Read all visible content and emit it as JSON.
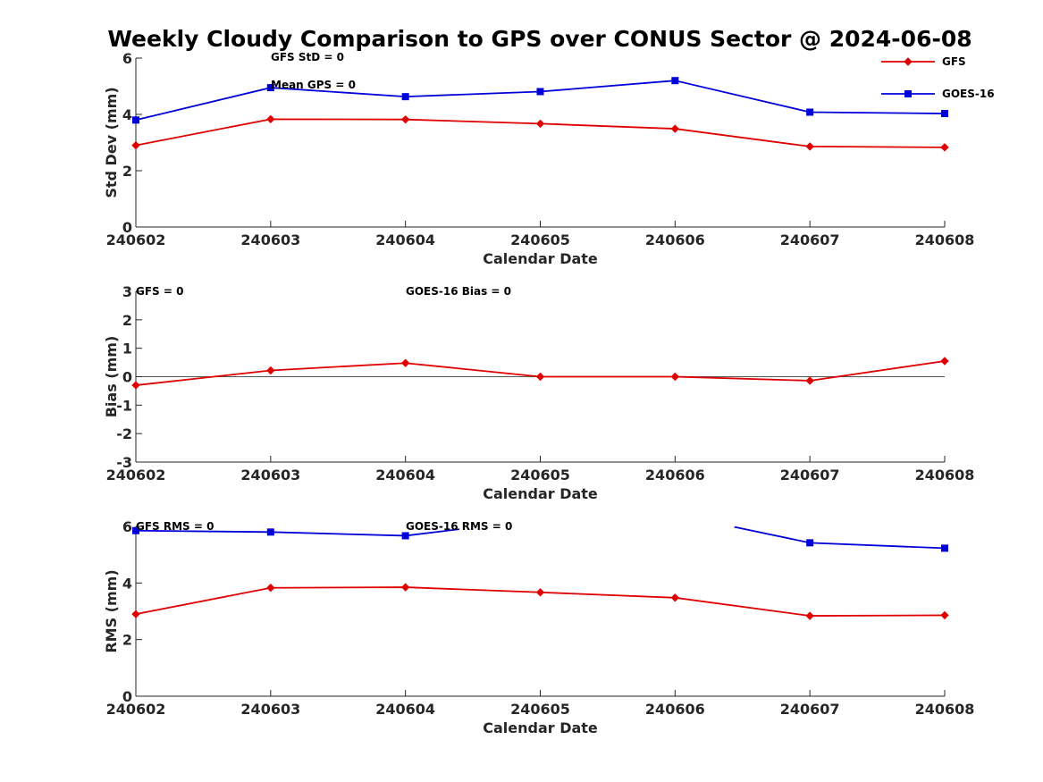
{
  "title": "Weekly Cloudy Comparison to GPS over CONUS Sector @ 2024-06-08",
  "colors": {
    "gfs": "#e00000",
    "goes": "#0000d8"
  },
  "legend": [
    {
      "name": "GFS",
      "color": "#e00000",
      "marker": "diamond"
    },
    {
      "name": "GOES-16",
      "color": "#0000d8",
      "marker": "square"
    }
  ],
  "chart_data": [
    {
      "type": "line",
      "ylabel": "Std Dev (mm)",
      "xlabel": "Calendar Date",
      "categories": [
        "240602",
        "240603",
        "240604",
        "240605",
        "240606",
        "240607",
        "240608"
      ],
      "ylim": [
        0,
        6
      ],
      "yticks": [
        0,
        2,
        4,
        6
      ],
      "annotations": [
        "GFS StD = 0",
        "Mean GPS = 0"
      ],
      "series": [
        {
          "name": "GFS",
          "color": "#e00000",
          "marker": "diamond",
          "segments": [
            [
              [
                0,
                2.9
              ],
              [
                1,
                3.83
              ],
              [
                2,
                3.82
              ],
              [
                3,
                3.67
              ],
              [
                4,
                3.49
              ],
              [
                5,
                2.86
              ],
              [
                6,
                2.83
              ]
            ]
          ]
        },
        {
          "name": "GOES-16",
          "color": "#0000d8",
          "marker": "square",
          "segments": [
            [
              [
                0,
                3.8
              ],
              [
                1,
                4.95
              ],
              [
                2,
                4.63
              ],
              [
                3,
                4.81
              ],
              [
                4,
                5.2
              ],
              [
                5,
                4.08
              ],
              [
                6,
                4.03
              ]
            ]
          ]
        }
      ]
    },
    {
      "type": "line",
      "ylabel": "Bias (mm)",
      "xlabel": "Calendar Date",
      "categories": [
        "240602",
        "240603",
        "240604",
        "240605",
        "240606",
        "240607",
        "240608"
      ],
      "ylim": [
        -3,
        3
      ],
      "yticks": [
        -3,
        -2,
        -1,
        0,
        1,
        2,
        3
      ],
      "zero_line": true,
      "annotations": [
        "GFS = 0",
        "GOES-16 Bias  = 0"
      ],
      "series": [
        {
          "name": "GFS",
          "color": "#e00000",
          "marker": "diamond",
          "segments": [
            [
              [
                0,
                -0.3
              ],
              [
                1,
                0.22
              ],
              [
                2,
                0.48
              ],
              [
                3,
                0.0
              ],
              [
                4,
                0.0
              ],
              [
                5,
                -0.14
              ],
              [
                6,
                0.55
              ]
            ]
          ]
        }
      ]
    },
    {
      "type": "line",
      "ylabel": "RMS (mm)",
      "xlabel": "Calendar Date",
      "categories": [
        "240602",
        "240603",
        "240604",
        "240605",
        "240606",
        "240607",
        "240608"
      ],
      "ylim": [
        0,
        6
      ],
      "yticks": [
        0,
        2,
        4,
        6
      ],
      "annotations": [
        "GFS RMS = 0",
        "GOES-16 RMS = 0"
      ],
      "series": [
        {
          "name": "GFS",
          "color": "#e00000",
          "marker": "diamond",
          "segments": [
            [
              [
                0,
                2.9
              ],
              [
                1,
                3.83
              ],
              [
                2,
                3.85
              ],
              [
                3,
                3.67
              ],
              [
                4,
                3.48
              ],
              [
                5,
                2.84
              ],
              [
                6,
                2.86
              ]
            ]
          ]
        },
        {
          "name": "GOES-16",
          "color": "#0000d8",
          "marker": "square",
          "segments": [
            [
              [
                0,
                5.85
              ],
              [
                1,
                5.8
              ],
              [
                2,
                5.67
              ],
              [
                2.4,
                5.9
              ]
            ],
            [
              [
                4.44,
                5.98
              ],
              [
                5,
                5.42
              ],
              [
                6,
                5.23
              ]
            ]
          ]
        }
      ]
    }
  ]
}
